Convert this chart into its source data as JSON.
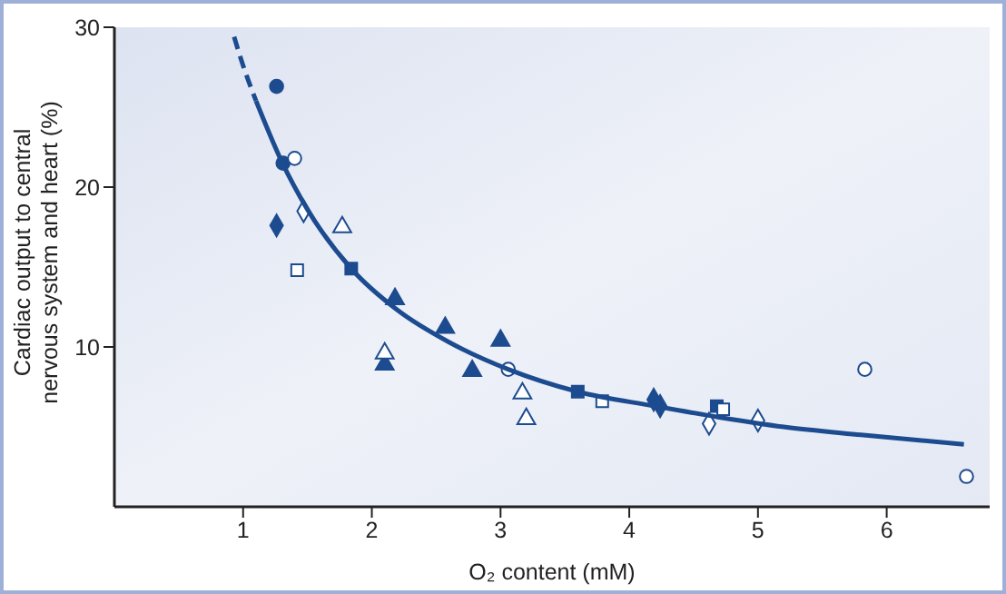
{
  "chart_data": {
    "type": "scatter",
    "xlabel": "O₂ content (mM)",
    "ylabel": "Cardiac output to central nervous system and heart (%)",
    "xlim": [
      0,
      6.8
    ],
    "xticks": [
      1,
      2,
      3,
      4,
      5,
      6
    ],
    "ylim": [
      0,
      30
    ],
    "yticks": [
      10,
      20,
      30
    ],
    "grid": false,
    "series": [
      {
        "marker": "circle",
        "color": "#1d4b8f",
        "x": [
          1.26,
          1.31
        ],
        "values": [
          26.3,
          21.5
        ]
      },
      {
        "marker": "circle",
        "color": "#ffffff",
        "x": [
          1.4,
          3.06,
          5.83,
          6.62
        ],
        "values": [
          21.8,
          8.6,
          8.6,
          1.9
        ]
      },
      {
        "marker": "diamond",
        "color": "#1d4b8f",
        "x": [
          1.26,
          4.19,
          4.24
        ],
        "values": [
          17.6,
          6.7,
          6.3
        ]
      },
      {
        "marker": "diamond",
        "color": "#ffffff",
        "x": [
          1.47,
          4.62,
          5.0
        ],
        "values": [
          18.5,
          5.2,
          5.4
        ]
      },
      {
        "marker": "triangle",
        "color": "#1d4b8f",
        "x": [
          2.1,
          2.18,
          2.57,
          2.78,
          3.0
        ],
        "values": [
          8.9,
          13.0,
          11.2,
          8.5,
          10.4
        ]
      },
      {
        "marker": "triangle",
        "color": "#ffffff",
        "x": [
          1.77,
          2.1,
          3.17,
          3.2
        ],
        "values": [
          17.5,
          9.6,
          7.1,
          5.5
        ]
      },
      {
        "marker": "square",
        "color": "#1d4b8f",
        "x": [
          1.84,
          3.6,
          4.68
        ],
        "values": [
          14.9,
          7.2,
          6.3
        ]
      },
      {
        "marker": "square",
        "color": "#ffffff",
        "x": [
          1.42,
          3.79,
          4.73
        ],
        "values": [
          14.8,
          6.6,
          6.1
        ]
      },
      {
        "type": "line",
        "line_style": "dashed",
        "color": "#1d4b8f",
        "x": [
          0.93,
          1.0,
          1.1
        ],
        "values": [
          29.4,
          27.6,
          25.4
        ]
      },
      {
        "type": "line",
        "line_style": "solid",
        "color": "#1d4b8f",
        "x": [
          1.1,
          1.3,
          1.5,
          1.84,
          2.2,
          2.6,
          3.06,
          3.6,
          4.2,
          4.7,
          5.2,
          5.8,
          6.6
        ],
        "values": [
          25.4,
          21.6,
          18.6,
          14.9,
          12.3,
          10.3,
          8.6,
          7.2,
          6.3,
          5.6,
          5.0,
          4.5,
          3.9
        ]
      }
    ]
  }
}
